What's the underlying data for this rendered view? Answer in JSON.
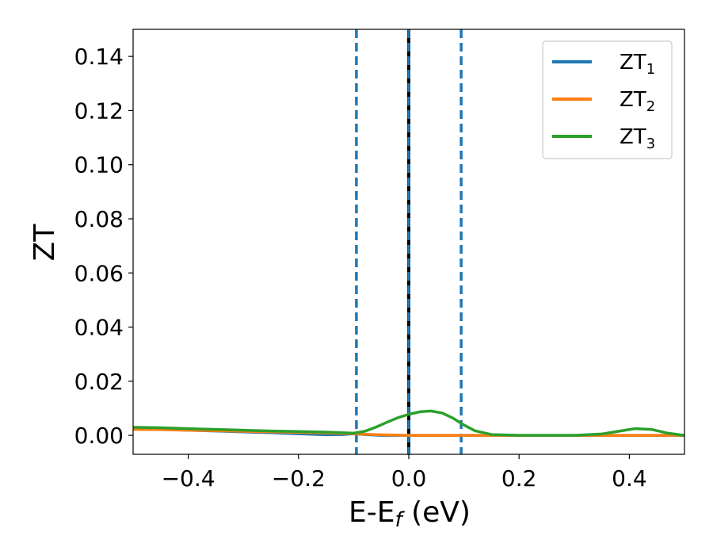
{
  "chart_data": {
    "type": "line",
    "title": "",
    "xlabel": "E-E",
    "xlabel_sub": "f",
    "xlabel_unit": " (eV)",
    "ylabel": "ZT",
    "xlim": [
      -0.5,
      0.5
    ],
    "ylim": [
      -0.007,
      0.15
    ],
    "x_ticks": [
      -0.4,
      -0.2,
      0.0,
      0.2,
      0.4
    ],
    "x_tick_labels": [
      "−0.4",
      "−0.2",
      "0.0",
      "0.2",
      "0.4"
    ],
    "y_ticks": [
      0.0,
      0.02,
      0.04,
      0.06,
      0.08,
      0.1,
      0.12,
      0.14
    ],
    "y_tick_labels": [
      "0.00",
      "0.02",
      "0.04",
      "0.06",
      "0.08",
      "0.10",
      "0.12",
      "0.14"
    ],
    "grid": false,
    "legend_position": "top-right",
    "vertical_lines": [
      {
        "x": -0.095,
        "style": "dashed",
        "color": "#1f77b4"
      },
      {
        "x": 0.0,
        "style": "solid",
        "color": "#000000"
      },
      {
        "x": 0.0,
        "style": "dashed",
        "color": "#1f77b4"
      },
      {
        "x": 0.095,
        "style": "dashed",
        "color": "#1f77b4"
      }
    ],
    "series": [
      {
        "name": "ZT",
        "subscript": "1",
        "color": "#1f77b4",
        "x": [
          -0.5,
          -0.45,
          -0.4,
          -0.35,
          -0.3,
          -0.25,
          -0.2,
          -0.15,
          -0.12,
          -0.1,
          -0.08,
          -0.05,
          -0.02,
          0.0,
          0.02,
          0.05,
          0.1,
          0.2,
          0.3,
          0.4,
          0.5
        ],
        "y": [
          0.0025,
          0.0022,
          0.0019,
          0.0016,
          0.0013,
          0.001,
          0.0006,
          0.0002,
          0.0003,
          0.0006,
          0.0003,
          0.0,
          0.0,
          0.0,
          0.0,
          0.0,
          0.0,
          0.0,
          0.0,
          0.0,
          0.0
        ]
      },
      {
        "name": "ZT",
        "subscript": "2",
        "color": "#ff7f0e",
        "x": [
          -0.5,
          -0.45,
          -0.4,
          -0.35,
          -0.3,
          -0.25,
          -0.2,
          -0.15,
          -0.1,
          -0.08,
          -0.05,
          -0.02,
          0.0,
          0.05,
          0.1,
          0.2,
          0.3,
          0.4,
          0.5
        ],
        "y": [
          0.0022,
          0.0021,
          0.0019,
          0.0017,
          0.0015,
          0.0013,
          0.0011,
          0.0009,
          0.0006,
          0.0004,
          0.0002,
          0.0001,
          0.0,
          0.0,
          0.0,
          0.0,
          0.0,
          0.0,
          0.0
        ]
      },
      {
        "name": "ZT",
        "subscript": "3",
        "color": "#2ca02c",
        "x": [
          -0.5,
          -0.45,
          -0.4,
          -0.35,
          -0.3,
          -0.25,
          -0.2,
          -0.15,
          -0.1,
          -0.08,
          -0.06,
          -0.04,
          -0.02,
          0.0,
          0.02,
          0.04,
          0.06,
          0.08,
          0.1,
          0.12,
          0.15,
          0.2,
          0.25,
          0.3,
          0.35,
          0.38,
          0.41,
          0.44,
          0.47,
          0.5
        ],
        "y": [
          0.003,
          0.0028,
          0.0025,
          0.0022,
          0.0019,
          0.0016,
          0.0014,
          0.0012,
          0.0008,
          0.0015,
          0.003,
          0.0048,
          0.0065,
          0.0078,
          0.0087,
          0.009,
          0.0083,
          0.0064,
          0.0038,
          0.0017,
          0.0003,
          0.0,
          0.0,
          0.0,
          0.0005,
          0.0015,
          0.0025,
          0.0022,
          0.0008,
          0.0
        ]
      }
    ]
  }
}
